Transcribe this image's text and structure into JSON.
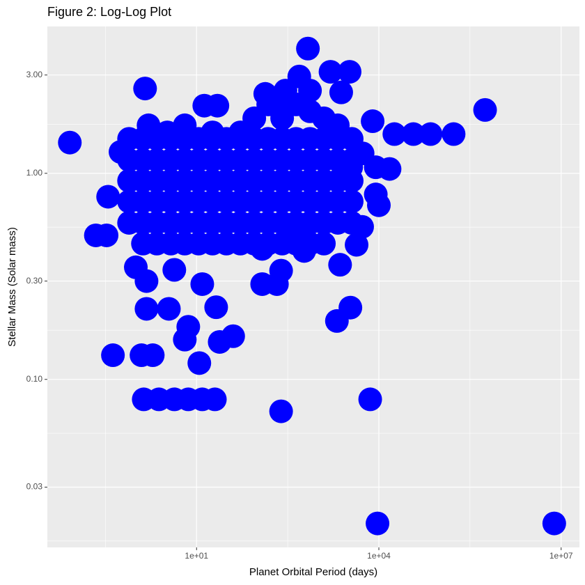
{
  "chart_data": {
    "type": "scatter",
    "title": "Figure 2: Log-Log Plot",
    "x_label": "Planet Orbital Period (days)",
    "y_label": "Stellar Mass (Solar mass)",
    "x_log": true,
    "y_log": true,
    "grid": true,
    "xlim": [
      0.035,
      20000000
    ],
    "ylim": [
      0.0153,
      5.16
    ],
    "xticks": [
      {
        "value": 10,
        "label": "1e+01"
      },
      {
        "value": 10000,
        "label": "1e+04"
      },
      {
        "value": 10000000,
        "label": "1e+07"
      }
    ],
    "yticks": [
      0.03,
      {
        "value": 0.1,
        "label": "0.10"
      },
      {
        "value": 0.3,
        "label": "0.30"
      },
      {
        "value": 1,
        "label": "1.00"
      },
      {
        "value": 3,
        "label": "3.00"
      }
    ],
    "series": [
      {
        "color": "#0000ff",
        "x": [
          0.082,
          9500,
          7700000,
          560000,
          170000,
          71000,
          37000,
          18000,
          7900,
          15000,
          10000,
          680,
          1600,
          3300,
          2400,
          135,
          1.42,
          13.4,
          22,
          7200,
          246,
          1.35,
          2.4,
          4.3,
          7.3,
          12.4,
          20,
          0.42,
          1.24,
          1.9,
          11.1,
          40,
          24,
          2040,
          3400,
          246,
          210,
          120,
          120,
          2300,
          4300,
          5300,
          0.22,
          0.33,
          0.35,
          0.56,
          1.0,
          1.5,
          1.5,
          3.5,
          7.3,
          6.4,
          21,
          12.4,
          4.3,
          1.62,
          6.4,
          490,
          290,
          8900,
          8900,
          470,
          590,
          3500,
          5400,
          89,
          151,
          256,
          433,
          735,
          1245,
          2110,
          256,
          735,
          52.6,
          18.3,
          3.3,
          0.774,
          1.31,
          2.22,
          3.77,
          6.38,
          10.8,
          18.3,
          31,
          52.6,
          89,
          151,
          256,
          433,
          735,
          1245,
          2110,
          3570,
          0.774,
          1.31,
          2.22,
          3.77,
          6.38,
          10.8,
          18.3,
          31,
          52.6,
          89,
          151,
          256,
          433,
          735,
          1245,
          2110,
          3570,
          0.774,
          1.31,
          2.22,
          3.77,
          6.38,
          10.8,
          18.3,
          31,
          52.6,
          89,
          151,
          256,
          433,
          735,
          1245,
          2110,
          3570,
          0.774,
          1.31,
          2.22,
          3.77,
          6.38,
          10.8,
          18.3,
          31,
          52.6,
          89,
          151,
          256,
          433,
          735,
          1245,
          2110,
          3570,
          0.774,
          1.31,
          2.22,
          3.77,
          6.38,
          10.8,
          18.3,
          31,
          52.6,
          89,
          151,
          256,
          433,
          735,
          1245,
          2110,
          3570,
          1.31,
          2.22,
          3.77,
          6.38,
          10.8,
          18.3,
          31,
          52.6,
          89,
          151,
          256,
          433,
          735,
          1245
        ],
        "values": [
          1.41,
          0.02,
          0.02,
          2.03,
          1.55,
          1.55,
          1.55,
          1.55,
          1.79,
          1.05,
          0.7,
          4.03,
          3.11,
          3.11,
          2.47,
          2.43,
          2.58,
          2.13,
          2.13,
          0.08,
          0.07,
          0.08,
          0.08,
          0.08,
          0.08,
          0.08,
          0.08,
          0.131,
          0.131,
          0.131,
          0.12,
          0.162,
          0.152,
          0.192,
          0.223,
          0.337,
          0.29,
          0.29,
          0.43,
          0.36,
          0.45,
          0.55,
          0.5,
          0.5,
          0.77,
          1.27,
          0.35,
          0.3,
          0.22,
          0.22,
          0.18,
          0.156,
          0.224,
          0.29,
          0.34,
          1.71,
          1.71,
          2.95,
          2.52,
          1.07,
          0.79,
          0.49,
          0.42,
          1.07,
          1.25,
          1.85,
          2.16,
          2.33,
          2.16,
          2.0,
          1.85,
          1.71,
          1.85,
          2.52,
          1.58,
          1.58,
          1.58,
          1.47,
          1.47,
          1.47,
          1.47,
          1.47,
          1.47,
          1.47,
          1.47,
          1.47,
          1.47,
          1.47,
          1.47,
          1.47,
          1.47,
          1.47,
          1.47,
          1.47,
          1.16,
          1.16,
          1.16,
          1.16,
          1.16,
          1.16,
          1.16,
          1.16,
          1.16,
          1.16,
          1.16,
          1.16,
          1.16,
          1.16,
          1.16,
          1.16,
          1.16,
          0.92,
          0.92,
          0.92,
          0.92,
          0.92,
          0.92,
          0.92,
          0.92,
          0.92,
          0.92,
          0.92,
          0.92,
          0.92,
          0.92,
          0.92,
          0.92,
          0.92,
          0.73,
          0.73,
          0.73,
          0.73,
          0.73,
          0.73,
          0.73,
          0.73,
          0.73,
          0.73,
          0.73,
          0.73,
          0.73,
          0.73,
          0.73,
          0.73,
          0.73,
          0.575,
          0.575,
          0.575,
          0.575,
          0.575,
          0.575,
          0.575,
          0.575,
          0.575,
          0.575,
          0.575,
          0.575,
          0.575,
          0.575,
          0.575,
          0.575,
          0.575,
          0.456,
          0.456,
          0.456,
          0.456,
          0.456,
          0.456,
          0.456,
          0.456,
          0.456,
          0.456,
          0.456,
          0.456,
          0.456,
          0.456
        ]
      }
    ]
  }
}
